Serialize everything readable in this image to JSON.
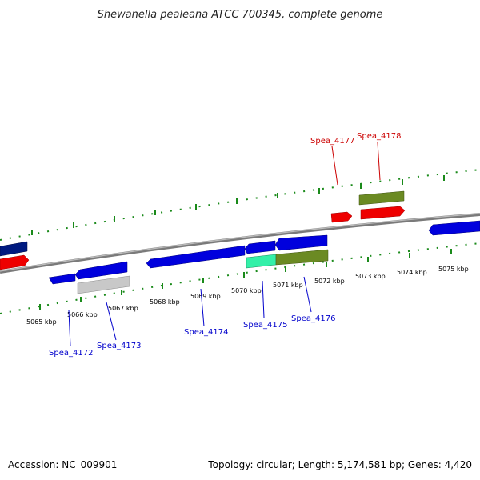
{
  "title": "Shewanella pealeana ATCC 700345, complete genome",
  "footer": {
    "accession": "Accession: NC_009901",
    "info": "Topology: circular; Length: 5,174,581 bp; Genes: 4,420"
  },
  "colors": {
    "plus_strand": "#0000dd",
    "minus_strand": "#ee0000",
    "dark_blue": "#001a80",
    "olive": "#6b8a23",
    "teal": "#33f0a8",
    "gray": "#c8c8c8",
    "ticks": "#1a8a1a",
    "backbone": "#808080"
  },
  "scale": {
    "unit": "kbp",
    "labels": [
      {
        "kbp": 5065,
        "text": "5065 kbp"
      },
      {
        "kbp": 5066,
        "text": "5066 kbp"
      },
      {
        "kbp": 5067,
        "text": "5067 kbp"
      },
      {
        "kbp": 5068,
        "text": "5068 kbp"
      },
      {
        "kbp": 5069,
        "text": "5069 kbp"
      },
      {
        "kbp": 5070,
        "text": "5070 kbp"
      },
      {
        "kbp": 5071,
        "text": "5071 kbp"
      },
      {
        "kbp": 5072,
        "text": "5072 kbp"
      },
      {
        "kbp": 5073,
        "text": "5073 kbp"
      },
      {
        "kbp": 5074,
        "text": "5074 kbp"
      },
      {
        "kbp": 5075,
        "text": "5075 kbp"
      }
    ]
  },
  "genes": [
    {
      "label": "Spea_4172",
      "color_key": "plus_strand",
      "label_color": "#0000cc"
    },
    {
      "label": "Spea_4173",
      "color_key": "plus_strand",
      "label_color": "#0000cc"
    },
    {
      "label": "Spea_4174",
      "color_key": "plus_strand",
      "label_color": "#0000cc"
    },
    {
      "label": "Spea_4175",
      "color_key": "teal",
      "label_color": "#0000cc"
    },
    {
      "label": "Spea_4176",
      "color_key": "olive",
      "label_color": "#0000cc"
    },
    {
      "label": "Spea_4177",
      "color_key": "minus_strand",
      "label_color": "#cc0000"
    },
    {
      "label": "Spea_4178",
      "color_key": "olive",
      "label_color": "#cc0000"
    }
  ]
}
